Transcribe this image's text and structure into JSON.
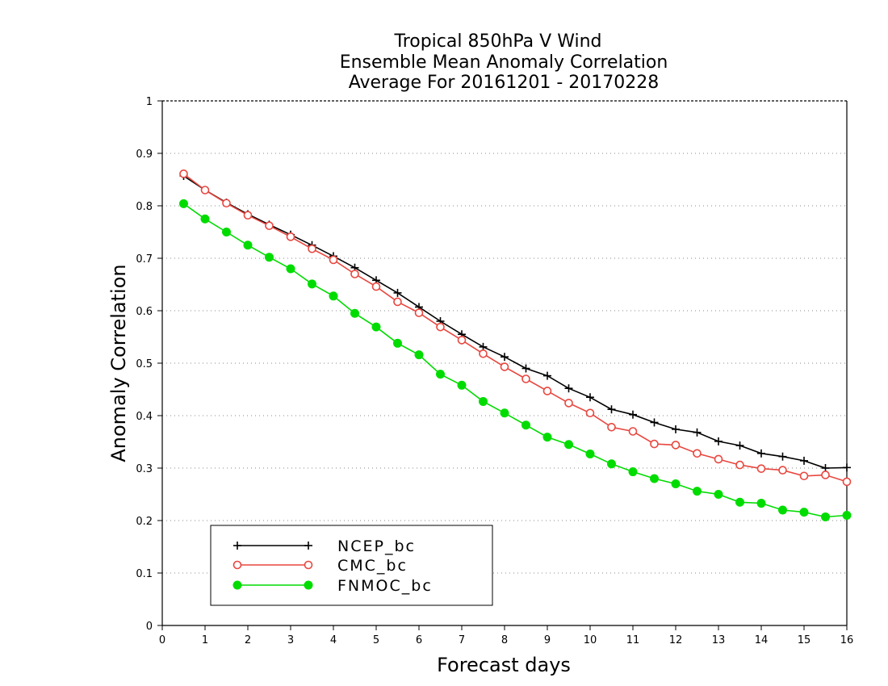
{
  "chart_data": {
    "type": "line",
    "title": [
      "Tropical 850hPa V Wind",
      "Ensemble Mean Anomaly Correlation",
      "Average For 20161201 - 20170228"
    ],
    "xlabel": "Forecast days",
    "ylabel": "Anomaly Correlation",
    "xlim": [
      0,
      16
    ],
    "ylim": [
      0,
      1
    ],
    "xticks": [
      0,
      1,
      2,
      3,
      4,
      5,
      6,
      7,
      8,
      9,
      10,
      11,
      12,
      13,
      14,
      15,
      16
    ],
    "yticks": [
      0,
      0.1,
      0.2,
      0.3,
      0.4,
      0.5,
      0.6,
      0.7,
      0.8,
      0.9,
      1
    ],
    "ytick_labels": [
      "0",
      "0.1",
      "0.2",
      "0.3",
      "0.4",
      "0.5",
      "0.6",
      "0.7",
      "0.8",
      "0.9",
      "1"
    ],
    "grid": "horizontal dotted",
    "legend_position": "bottom-left",
    "x": [
      0.5,
      1,
      1.5,
      2,
      2.5,
      3,
      3.5,
      4,
      4.5,
      5,
      5.5,
      6,
      6.5,
      7,
      7.5,
      8,
      8.5,
      9,
      9.5,
      10,
      10.5,
      11,
      11.5,
      12,
      12.5,
      13,
      13.5,
      14,
      14.5,
      15,
      15.5,
      16
    ],
    "series": [
      {
        "name": "NCEP_bc",
        "color": "#000000",
        "marker": "plus",
        "values": [
          0.857,
          0.83,
          0.806,
          0.784,
          0.764,
          0.745,
          0.725,
          0.704,
          0.682,
          0.658,
          0.634,
          0.607,
          0.58,
          0.555,
          0.531,
          0.512,
          0.49,
          0.476,
          0.452,
          0.435,
          0.412,
          0.402,
          0.387,
          0.374,
          0.368,
          0.351,
          0.343,
          0.328,
          0.322,
          0.314,
          0.3,
          0.301
        ]
      },
      {
        "name": "CMC_bc",
        "color": "#e8473f",
        "marker": "open-circle",
        "values": [
          0.861,
          0.83,
          0.805,
          0.782,
          0.762,
          0.741,
          0.718,
          0.697,
          0.67,
          0.646,
          0.617,
          0.596,
          0.569,
          0.544,
          0.518,
          0.493,
          0.47,
          0.447,
          0.424,
          0.405,
          0.378,
          0.37,
          0.346,
          0.344,
          0.328,
          0.317,
          0.306,
          0.299,
          0.296,
          0.285,
          0.287,
          0.274
        ]
      },
      {
        "name": "FNMOC_bc",
        "color": "#00dc00",
        "marker": "filled-circle",
        "values": [
          0.804,
          0.775,
          0.75,
          0.725,
          0.702,
          0.68,
          0.651,
          0.628,
          0.595,
          0.569,
          0.538,
          0.516,
          0.479,
          0.458,
          0.427,
          0.405,
          0.382,
          0.359,
          0.345,
          0.327,
          0.308,
          0.293,
          0.28,
          0.27,
          0.256,
          0.25,
          0.235,
          0.233,
          0.22,
          0.216,
          0.207,
          0.21
        ]
      }
    ]
  }
}
